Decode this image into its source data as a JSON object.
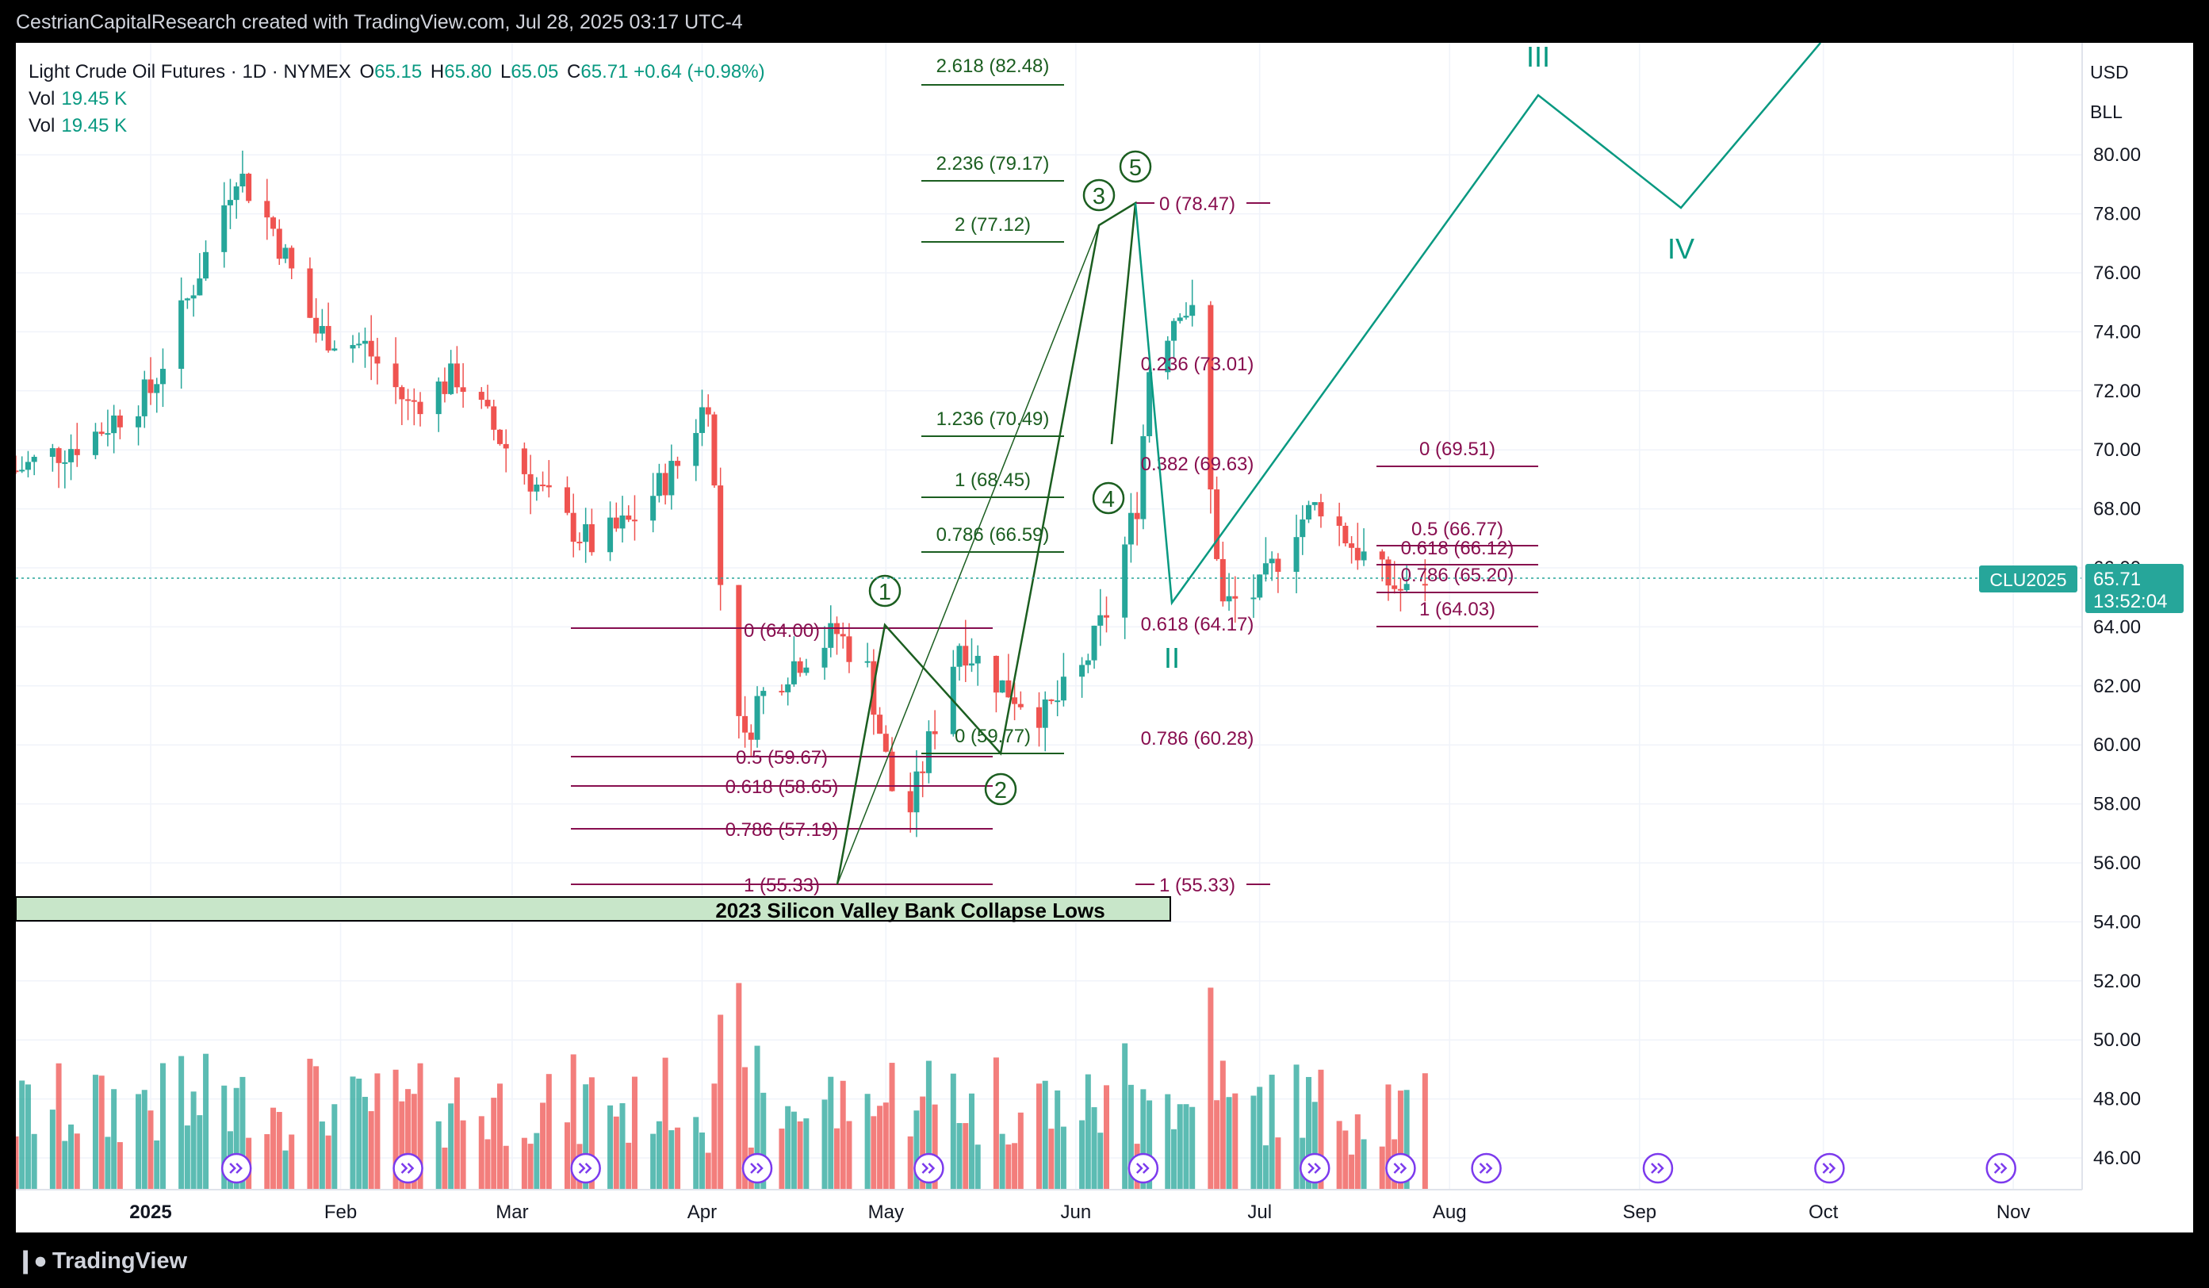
{
  "header": {
    "text": "CestrianCapitalResearch created with TradingView.com, Jul 28, 2025 03:17 UTC-4"
  },
  "footer": {
    "logo_text": "TradingView"
  },
  "legend": {
    "symbol": "Light Crude Oil Futures · 1D · NYMEX",
    "o_label": "O",
    "o": "65.15",
    "h_label": "H",
    "h": "65.80",
    "l_label": "L",
    "l": "65.05",
    "c_label": "C",
    "c": "65.71",
    "change": "+0.64 (+0.98%)",
    "vol_label": "Vol",
    "vol": "19.45 K",
    "vol2_label": "Vol",
    "vol2": "19.45 K"
  },
  "units": {
    "currency": "USD",
    "unit": "BLL"
  },
  "price_tag": {
    "symbol": "CLU2025",
    "price": "65.71",
    "countdown": "13:52:04"
  },
  "colors": {
    "up": "#26a69a",
    "down": "#ef5350",
    "fib_green": "#1b5e20",
    "fib_purple": "#880e4f",
    "wave": "#089981",
    "event": "#7c3aed"
  },
  "chart_data": {
    "type": "candlestick",
    "ylim": [
      45.0,
      82.0
    ],
    "y_ticks": [
      "80.00",
      "78.00",
      "76.00",
      "74.00",
      "72.00",
      "70.00",
      "68.00",
      "66.00",
      "64.00",
      "62.00",
      "60.00",
      "58.00",
      "56.00",
      "54.00",
      "52.00",
      "50.00",
      "48.00",
      "46.00"
    ],
    "y_tick_values": [
      80,
      78,
      76,
      74,
      72,
      70,
      68,
      66,
      64,
      62,
      60,
      58,
      56,
      54,
      52,
      50,
      48,
      46
    ],
    "x_ticks": [
      {
        "label": "2025",
        "date": "2025-01-01",
        "bold": true
      },
      {
        "label": "Feb",
        "date": "2025-02-01"
      },
      {
        "label": "Mar",
        "date": "2025-03-01"
      },
      {
        "label": "Apr",
        "date": "2025-04-01"
      },
      {
        "label": "May",
        "date": "2025-05-01"
      },
      {
        "label": "Jun",
        "date": "2025-06-01"
      },
      {
        "label": "Jul",
        "date": "2025-07-01"
      },
      {
        "label": "Aug",
        "date": "2025-08-01"
      },
      {
        "label": "Sep",
        "date": "2025-09-01"
      },
      {
        "label": "Oct",
        "date": "2025-10-01"
      },
      {
        "label": "Nov",
        "date": "2025-11-01"
      }
    ],
    "x_range": [
      "2024-12-10",
      "2025-12-01"
    ],
    "anchors": [
      [
        "2024-12-10",
        69.3
      ],
      [
        "2024-12-22",
        70.4
      ],
      [
        "2025-01-01",
        72.0
      ],
      [
        "2025-01-10",
        76.6
      ],
      [
        "2025-01-15",
        79.5
      ],
      [
        "2025-01-21",
        77.5
      ],
      [
        "2025-01-28",
        74.0
      ],
      [
        "2025-02-05",
        73.5
      ],
      [
        "2025-02-12",
        71.5
      ],
      [
        "2025-02-20",
        72.5
      ],
      [
        "2025-03-01",
        69.8
      ],
      [
        "2025-03-10",
        67.5
      ],
      [
        "2025-03-14",
        66.8
      ],
      [
        "2025-03-20",
        67.5
      ],
      [
        "2025-03-28",
        69.5
      ],
      [
        "2025-04-02",
        71.8
      ],
      [
        "2025-04-04",
        65.5
      ],
      [
        "2025-04-08",
        60.0
      ],
      [
        "2025-04-10",
        61.5
      ],
      [
        "2025-04-16",
        62.8
      ],
      [
        "2025-04-23",
        63.8
      ],
      [
        "2025-04-28",
        62.5
      ],
      [
        "2025-05-02",
        58.5
      ],
      [
        "2025-05-05",
        57.8
      ],
      [
        "2025-05-10",
        61.5
      ],
      [
        "2025-05-13",
        63.5
      ],
      [
        "2025-05-20",
        62.0
      ],
      [
        "2025-05-27",
        61.0
      ],
      [
        "2025-06-02",
        62.5
      ],
      [
        "2025-06-06",
        64.5
      ],
      [
        "2025-06-11",
        68.2
      ],
      [
        "2025-06-13",
        72.8
      ],
      [
        "2025-06-18",
        75.0
      ],
      [
        "2025-06-20",
        74.5
      ],
      [
        "2025-06-23",
        68.5
      ],
      [
        "2025-06-25",
        64.7
      ],
      [
        "2025-07-01",
        65.2
      ],
      [
        "2025-07-07",
        67.5
      ],
      [
        "2025-07-11",
        68.2
      ],
      [
        "2025-07-16",
        66.8
      ],
      [
        "2025-07-22",
        65.5
      ],
      [
        "2025-07-25",
        65.1
      ],
      [
        "2025-07-28",
        65.71
      ]
    ],
    "volume": {
      "label": "Vol",
      "last": "19.45 K"
    },
    "volume_ylim": [
      0,
      100
    ]
  },
  "fib_labels": {
    "g1": "2.618 (82.48)",
    "g2": "2.236 (79.17)",
    "g3": "2 (77.12)",
    "g4": "1.236 (70.49)",
    "g5": "1 (68.45)",
    "g6": "0.786 (66.59)",
    "g7": "0 (59.77)",
    "p1": "0 (64.00)",
    "p2": "0.5 (59.67)",
    "p3": "0.618 (58.65)",
    "p4": "0.786 (57.19)",
    "p5": "1 (55.33)",
    "q1": "0 (78.47)",
    "q2": "0.236 (73.01)",
    "q3": "0.382 (69.63)",
    "q4": "0.618 (64.17)",
    "q5": "0.786 (60.28)",
    "q6": "1 (55.33)",
    "r1": "0 (69.51)",
    "r2": "0.5 (66.77)",
    "r3": "0.618 (66.12)",
    "r4": "0.786 (65.20)",
    "r5": "1 (64.03)"
  },
  "waves": {
    "w1": "1",
    "w2": "2",
    "w3": "3",
    "w4": "4",
    "w5": "5",
    "II": "II",
    "III": "III",
    "IV": "IV"
  },
  "zone": {
    "label": "2023 Silicon Valley Bank Collapse Lows"
  }
}
